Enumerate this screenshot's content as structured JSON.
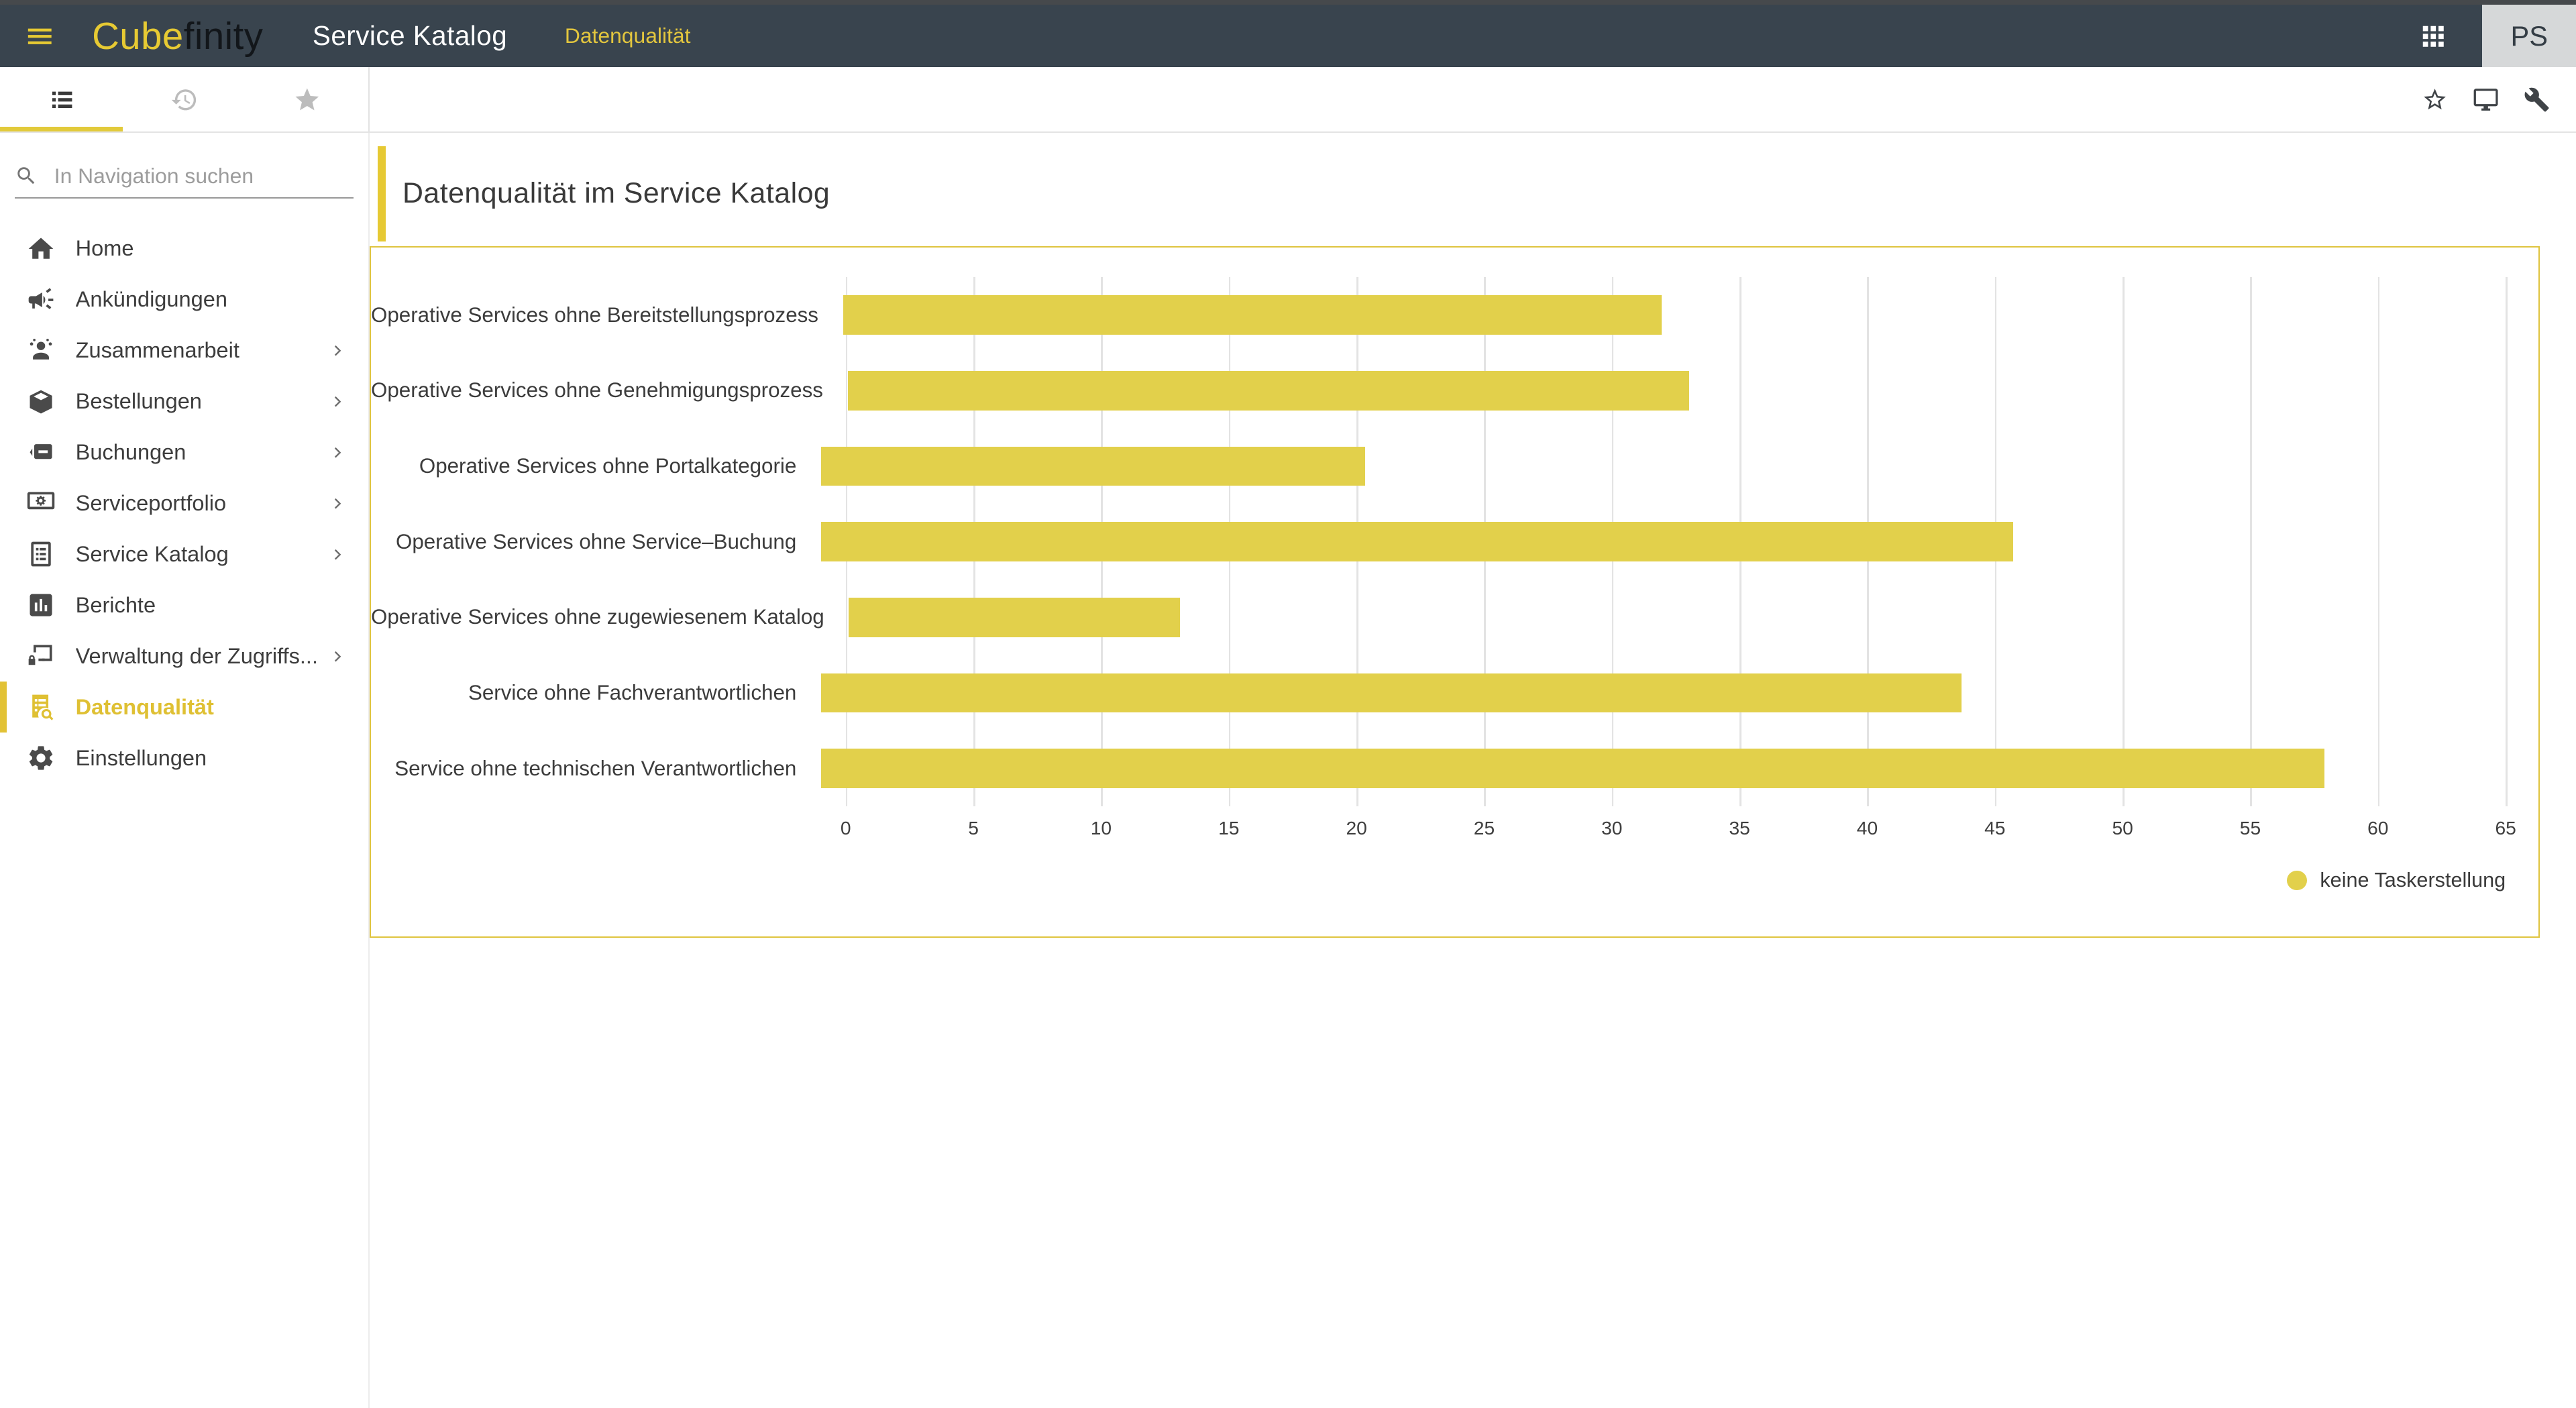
{
  "colors": {
    "header_bg": "#39444e",
    "brand_yellow": "#e7ca33",
    "accent_yellow": "#e6c934",
    "panel_border": "#dfc43f",
    "bar_yellow": "#e2d04b",
    "active_nav_yellow": "#dfc033"
  },
  "header": {
    "logo_primary": "Cube",
    "logo_secondary": "finity",
    "app_title": "Service Katalog",
    "breadcrumb": "Datenqualität",
    "avatar_initials": "PS"
  },
  "toolbar": {
    "tabs": [
      {
        "id": "navigation",
        "icon": "list-icon",
        "active": true
      },
      {
        "id": "history",
        "icon": "history-icon",
        "active": false
      },
      {
        "id": "favorites",
        "icon": "star-filled-icon",
        "active": false
      }
    ],
    "right_icons": [
      {
        "id": "favorite",
        "icon": "star-outline-icon"
      },
      {
        "id": "display",
        "icon": "monitor-icon"
      },
      {
        "id": "admin-tools",
        "icon": "wrench-icon"
      }
    ]
  },
  "sidebar": {
    "search_placeholder": "In Navigation suchen",
    "items": [
      {
        "label": "Home",
        "icon": "home-icon",
        "expandable": false,
        "active": false
      },
      {
        "label": "Ankündigungen",
        "icon": "announcement-icon",
        "expandable": false,
        "active": false
      },
      {
        "label": "Zusammenarbeit",
        "icon": "collaboration-icon",
        "expandable": true,
        "active": false
      },
      {
        "label": "Bestellungen",
        "icon": "orders-icon",
        "expandable": true,
        "active": false
      },
      {
        "label": "Buchungen",
        "icon": "bookings-icon",
        "expandable": true,
        "active": false
      },
      {
        "label": "Serviceportfolio",
        "icon": "portfolio-icon",
        "expandable": true,
        "active": false
      },
      {
        "label": "Service Katalog",
        "icon": "catalog-icon",
        "expandable": true,
        "active": false
      },
      {
        "label": "Berichte",
        "icon": "reports-icon",
        "expandable": false,
        "active": false
      },
      {
        "label": "Verwaltung der Zugriffs...",
        "icon": "access-icon",
        "expandable": true,
        "active": false
      },
      {
        "label": "Datenqualität",
        "icon": "data-quality-icon",
        "expandable": false,
        "active": true
      },
      {
        "label": "Einstellungen",
        "icon": "settings-icon",
        "expandable": false,
        "active": false
      }
    ]
  },
  "main": {
    "page_title": "Datenqualität im Service Katalog"
  },
  "chart_data": {
    "type": "bar",
    "orientation": "horizontal",
    "title": "Datenqualität im Service Katalog",
    "categories": [
      "Operative Services ohne Bereitstellungsprozess",
      "Operative Services ohne Genehmigungsprozess",
      "Operative Services ohne Portalkategorie",
      "Operative Services ohne Service–Buchung",
      "Operative Services ohne zugewiesenem Katalog",
      "Service ohne Fachverantwortlichen",
      "Service ohne technischen Verantwortlichen"
    ],
    "series": [
      {
        "name": "keine Taskerstellung",
        "values": [
          32,
          33,
          21,
          46,
          13,
          44,
          58
        ]
      }
    ],
    "xlim": [
      0,
      65
    ],
    "xticks": [
      0,
      5,
      10,
      15,
      20,
      25,
      30,
      35,
      40,
      45,
      50,
      55,
      60,
      65
    ],
    "grid": "vertical",
    "legend_position": "bottom-right",
    "bar_color": "#e2d04b"
  }
}
